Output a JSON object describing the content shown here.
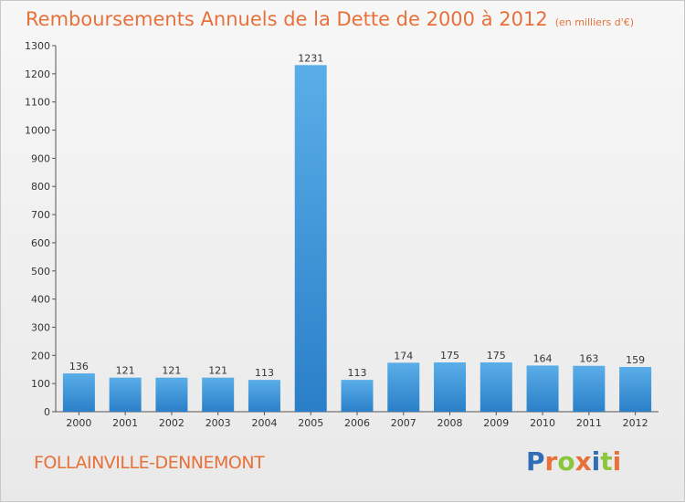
{
  "header": {
    "title": "Remboursements Annuels de la Dette de 2000 à 2012",
    "unit": "(en milliers d'€)"
  },
  "footer": {
    "commune": "FOLLAINVILLE-DENNEMONT",
    "logo_letters": [
      "P",
      "r",
      "o",
      "x",
      "i",
      "t",
      "i"
    ]
  },
  "colors": {
    "accent": "#e8703a",
    "bar_top": "#5aaee8",
    "bar_bottom": "#2a7fc8",
    "logo": [
      "#2f6db5",
      "#e8703a",
      "#8cc63f",
      "#e8703a",
      "#2f6db5",
      "#8cc63f",
      "#e8703a"
    ]
  },
  "chart_data": {
    "type": "bar",
    "title": "Remboursements Annuels de la Dette de 2000 à 2012",
    "categories": [
      "2000",
      "2001",
      "2002",
      "2003",
      "2004",
      "2005",
      "2006",
      "2007",
      "2008",
      "2009",
      "2010",
      "2011",
      "2012"
    ],
    "values": [
      136,
      121,
      121,
      121,
      113,
      1231,
      113,
      174,
      175,
      175,
      164,
      163,
      159
    ],
    "ylim": [
      0,
      1300
    ],
    "yticks": [
      0,
      100,
      200,
      300,
      400,
      500,
      600,
      700,
      800,
      900,
      1000,
      1100,
      1200,
      1300
    ],
    "grid": false,
    "data_labels": true
  }
}
